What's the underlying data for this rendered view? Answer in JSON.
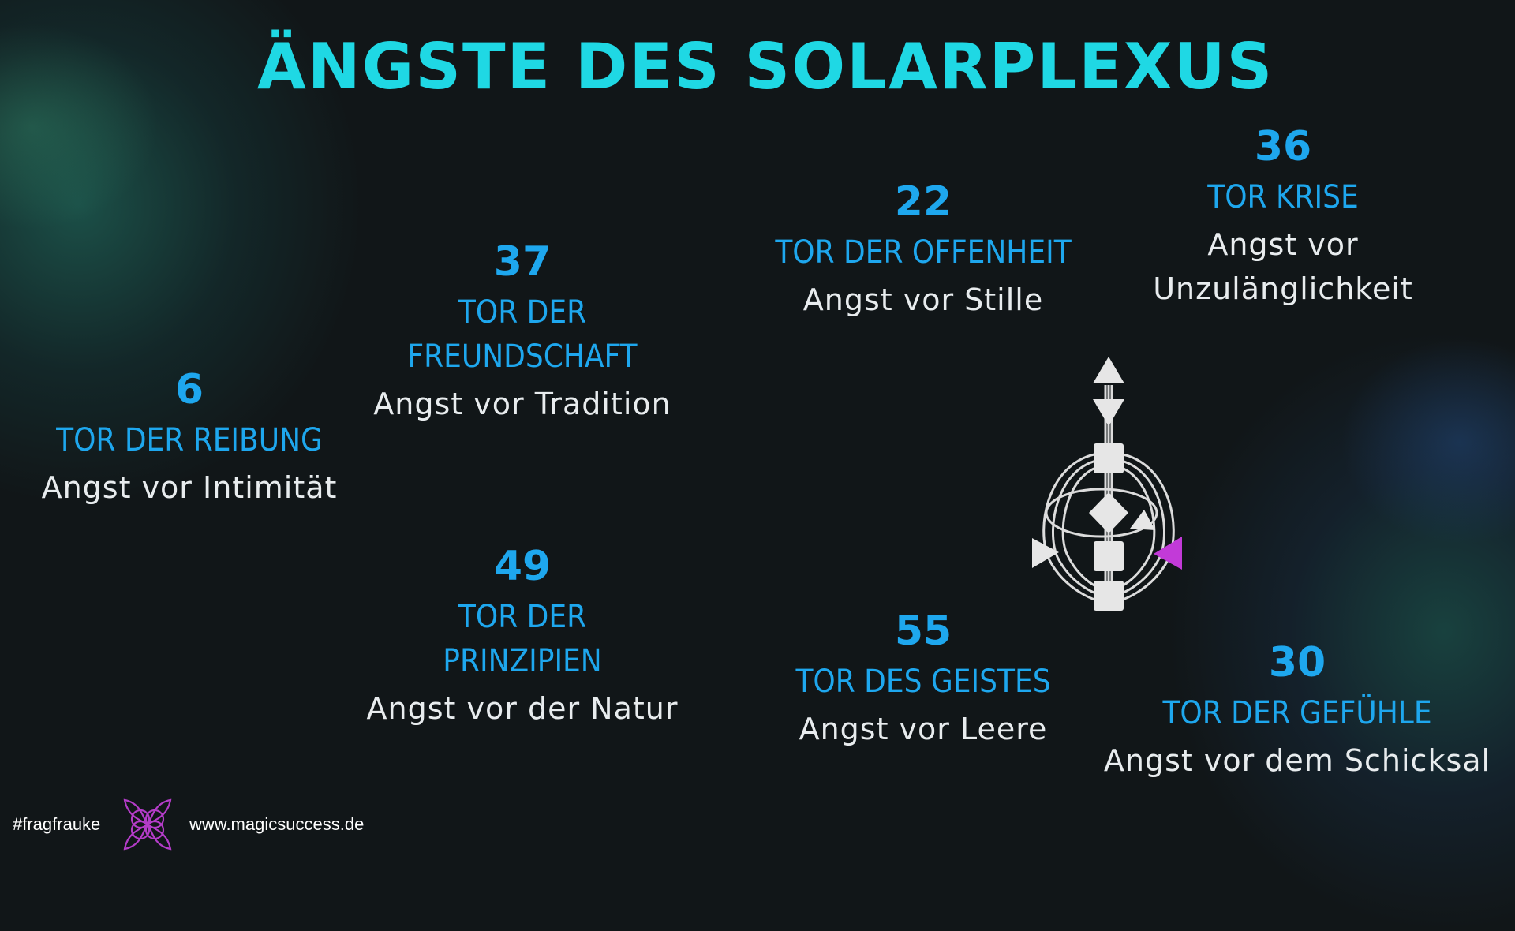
{
  "title": "ÄNGSTE DES SOLARPLEXUS",
  "gates": [
    {
      "number": "6",
      "name_lines": [
        "TOR DER REIBUNG"
      ],
      "fear_lines": [
        "Angst vor Intimität"
      ]
    },
    {
      "number": "37",
      "name_lines": [
        "TOR DER",
        "FREUNDSCHAFT"
      ],
      "fear_lines": [
        "Angst vor Tradition"
      ]
    },
    {
      "number": "49",
      "name_lines": [
        "TOR DER",
        "PRINZIPIEN"
      ],
      "fear_lines": [
        "Angst vor der Natur"
      ]
    },
    {
      "number": "22",
      "name_lines": [
        "TOR DER OFFENHEIT"
      ],
      "fear_lines": [
        "Angst vor Stille"
      ]
    },
    {
      "number": "55",
      "name_lines": [
        "TOR DES GEISTES"
      ],
      "fear_lines": [
        "Angst vor Leere"
      ]
    },
    {
      "number": "36",
      "name_lines": [
        "TOR KRISE"
      ],
      "fear_lines": [
        "Angst vor",
        "Unzulänglichkeit"
      ]
    },
    {
      "number": "30",
      "name_lines": [
        "TOR DER GEFÜHLE"
      ],
      "fear_lines": [
        "Angst vor dem Schicksal"
      ]
    }
  ],
  "footer": {
    "hashtag": "#fragfrauke",
    "url": "www.magicsuccess.de",
    "logo_icon": "flower-logo-icon"
  },
  "colors": {
    "title": "#1fd8e4",
    "gate_text": "#1ea7ee",
    "fear_text": "#e8ecee",
    "background": "#111618",
    "bodygraph_center": "#e6e6e6",
    "solar_plexus_highlight": "#c23ad8"
  },
  "icons": {
    "bodygraph": "human-design-bodygraph-icon"
  }
}
